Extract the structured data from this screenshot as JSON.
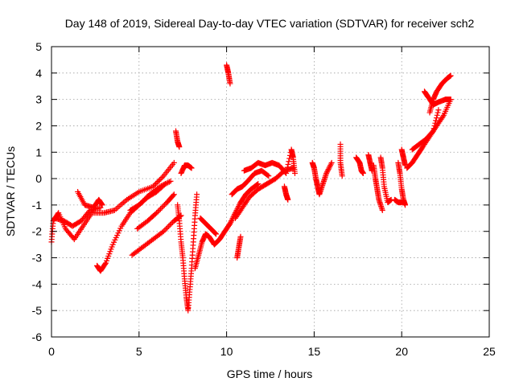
{
  "chart_data": {
    "type": "scatter",
    "title": "Day 148 of 2019, Sidereal Day-to-day VTEC variation (SDTVAR) for receiver sch2",
    "xlabel": "GPS time / hours",
    "ylabel": "SDTVAR / TECUs",
    "xlim": [
      0,
      25
    ],
    "ylim": [
      -6,
      5
    ],
    "xticks": [
      0,
      5,
      10,
      15,
      20,
      25
    ],
    "yticks": [
      -6,
      -5,
      -4,
      -3,
      -2,
      -1,
      0,
      1,
      2,
      3,
      4,
      5
    ],
    "grid": true,
    "marker": "+",
    "color": "#ff0000",
    "series": [
      {
        "tracks": [
          [
            [
              0.0,
              -2.4
            ],
            [
              0.1,
              -1.6
            ],
            [
              0.4,
              -1.3
            ],
            [
              0.8,
              -1.9
            ],
            [
              1.3,
              -2.3
            ],
            [
              1.8,
              -1.8
            ],
            [
              2.3,
              -1.3
            ],
            [
              3.0,
              -1.3
            ],
            [
              3.6,
              -1.2
            ],
            [
              4.3,
              -0.8
            ],
            [
              5.0,
              -0.5
            ],
            [
              5.8,
              -0.3
            ],
            [
              6.4,
              0.1
            ],
            [
              7.0,
              0.6
            ]
          ],
          [
            [
              0.2,
              -1.5
            ],
            [
              0.7,
              -1.6
            ],
            [
              1.2,
              -1.8
            ],
            [
              1.7,
              -1.6
            ],
            [
              2.2,
              -1.2
            ],
            [
              2.8,
              -1.1
            ]
          ],
          [
            [
              1.5,
              -0.5
            ],
            [
              1.9,
              -1.0
            ],
            [
              2.4,
              -1.1
            ],
            [
              2.7,
              -0.8
            ],
            [
              2.9,
              -1.0
            ]
          ],
          [
            [
              2.6,
              -3.3
            ],
            [
              2.8,
              -3.5
            ],
            [
              3.1,
              -3.2
            ],
            [
              3.5,
              -2.5
            ],
            [
              4.0,
              -1.8
            ],
            [
              4.5,
              -1.3
            ],
            [
              5.0,
              -1.0
            ],
            [
              5.5,
              -0.7
            ],
            [
              6.0,
              -0.5
            ],
            [
              6.5,
              -0.2
            ]
          ],
          [
            [
              4.5,
              -1.2
            ],
            [
              5.0,
              -1.0
            ],
            [
              5.6,
              -0.6
            ],
            [
              6.2,
              -0.3
            ],
            [
              6.8,
              -0.1
            ]
          ],
          [
            [
              4.6,
              -2.9
            ],
            [
              5.2,
              -2.6
            ],
            [
              5.8,
              -2.3
            ],
            [
              6.4,
              -2.0
            ],
            [
              7.0,
              -1.6
            ],
            [
              7.4,
              -1.4
            ]
          ],
          [
            [
              4.9,
              -1.9
            ],
            [
              5.5,
              -1.6
            ],
            [
              6.0,
              -1.3
            ],
            [
              6.6,
              -0.9
            ],
            [
              7.0,
              -0.6
            ]
          ],
          [
            [
              7.1,
              1.8
            ],
            [
              7.2,
              1.4
            ],
            [
              7.3,
              1.2
            ]
          ],
          [
            [
              7.2,
              -1.0
            ],
            [
              7.3,
              -1.6
            ],
            [
              7.4,
              -2.4
            ],
            [
              7.5,
              -3.0
            ],
            [
              7.6,
              -3.8
            ],
            [
              7.7,
              -4.5
            ],
            [
              7.8,
              -5.0
            ],
            [
              7.9,
              -4.2
            ],
            [
              8.0,
              -3.4
            ],
            [
              8.1,
              -2.4
            ],
            [
              8.2,
              -1.4
            ],
            [
              8.3,
              -0.6
            ]
          ],
          [
            [
              7.4,
              0.2
            ],
            [
              7.6,
              0.5
            ],
            [
              7.8,
              0.5
            ],
            [
              8.0,
              0.4
            ]
          ],
          [
            [
              8.2,
              -3.4
            ],
            [
              8.4,
              -2.9
            ],
            [
              8.6,
              -2.4
            ],
            [
              8.8,
              -2.1
            ],
            [
              9.0,
              -2.2
            ],
            [
              9.3,
              -2.5
            ],
            [
              9.6,
              -2.3
            ],
            [
              9.9,
              -2.0
            ],
            [
              10.2,
              -1.7
            ],
            [
              10.5,
              -1.3
            ],
            [
              10.8,
              -0.9
            ],
            [
              11.1,
              -0.6
            ],
            [
              11.4,
              -0.4
            ],
            [
              11.8,
              -0.2
            ]
          ],
          [
            [
              8.5,
              -1.5
            ],
            [
              8.8,
              -1.7
            ],
            [
              9.1,
              -1.9
            ],
            [
              9.4,
              -2.1
            ]
          ],
          [
            [
              10.0,
              4.3
            ],
            [
              10.1,
              4.0
            ],
            [
              10.2,
              3.6
            ]
          ],
          [
            [
              10.3,
              -0.6
            ],
            [
              10.6,
              -0.4
            ],
            [
              10.9,
              -0.3
            ],
            [
              11.2,
              -0.1
            ],
            [
              11.6,
              0.2
            ],
            [
              12.0,
              0.3
            ],
            [
              12.4,
              0.1
            ]
          ],
          [
            [
              10.5,
              -1.5
            ],
            [
              10.9,
              -1.1
            ],
            [
              11.3,
              -0.7
            ],
            [
              11.8,
              -0.4
            ],
            [
              12.3,
              -0.2
            ],
            [
              12.8,
              0.0
            ],
            [
              13.3,
              0.3
            ],
            [
              13.8,
              0.4
            ]
          ],
          [
            [
              10.6,
              -3.0
            ],
            [
              10.7,
              -2.6
            ],
            [
              10.8,
              -2.2
            ]
          ],
          [
            [
              11.0,
              0.3
            ],
            [
              11.4,
              0.4
            ],
            [
              11.8,
              0.6
            ],
            [
              12.2,
              0.5
            ],
            [
              12.6,
              0.6
            ],
            [
              13.0,
              0.5
            ],
            [
              13.4,
              0.2
            ],
            [
              13.7,
              1.1
            ],
            [
              13.8,
              0.8
            ],
            [
              13.9,
              0.2
            ]
          ],
          [
            [
              13.3,
              -0.3
            ],
            [
              13.4,
              -0.6
            ],
            [
              13.5,
              -0.8
            ]
          ],
          [
            [
              14.9,
              0.6
            ],
            [
              15.0,
              0.4
            ],
            [
              15.1,
              0.0
            ],
            [
              15.2,
              -0.3
            ],
            [
              15.3,
              -0.6
            ],
            [
              15.5,
              -0.2
            ],
            [
              15.7,
              0.2
            ],
            [
              16.0,
              0.6
            ]
          ],
          [
            [
              16.5,
              1.3
            ],
            [
              16.5,
              0.6
            ],
            [
              16.6,
              0.1
            ]
          ],
          [
            [
              17.4,
              0.8
            ],
            [
              17.6,
              0.6
            ],
            [
              17.7,
              0.3
            ],
            [
              17.8,
              0.2
            ]
          ],
          [
            [
              18.1,
              0.9
            ],
            [
              18.2,
              0.6
            ],
            [
              18.3,
              0.3
            ]
          ],
          [
            [
              18.4,
              0.5
            ],
            [
              18.5,
              0.0
            ],
            [
              18.6,
              -0.4
            ],
            [
              18.7,
              -0.8
            ],
            [
              18.9,
              -1.2
            ]
          ],
          [
            [
              18.8,
              0.8
            ],
            [
              18.9,
              0.4
            ],
            [
              19.0,
              -0.3
            ],
            [
              19.2,
              -0.9
            ],
            [
              19.4,
              -0.8
            ]
          ],
          [
            [
              19.8,
              0.6
            ],
            [
              19.9,
              0.2
            ],
            [
              20.0,
              -0.4
            ],
            [
              20.1,
              -0.8
            ],
            [
              20.2,
              -1.0
            ]
          ],
          [
            [
              19.6,
              -0.8
            ],
            [
              19.8,
              -0.9
            ],
            [
              20.0,
              -0.9
            ]
          ],
          [
            [
              20.0,
              1.1
            ],
            [
              20.1,
              0.8
            ],
            [
              20.2,
              0.5
            ]
          ],
          [
            [
              20.3,
              0.4
            ],
            [
              20.6,
              0.6
            ],
            [
              20.9,
              0.9
            ],
            [
              21.2,
              1.2
            ],
            [
              21.6,
              1.6
            ],
            [
              22.0,
              2.0
            ],
            [
              22.4,
              2.4
            ],
            [
              22.8,
              3.0
            ]
          ],
          [
            [
              20.6,
              1.1
            ],
            [
              21.0,
              1.3
            ],
            [
              21.4,
              1.5
            ],
            [
              21.8,
              1.8
            ],
            [
              22.1,
              2.6
            ]
          ],
          [
            [
              21.6,
              2.5
            ],
            [
              21.8,
              3.0
            ],
            [
              22.0,
              3.3
            ],
            [
              22.3,
              3.6
            ],
            [
              22.6,
              3.8
            ],
            [
              22.8,
              3.9
            ]
          ],
          [
            [
              21.3,
              3.3
            ],
            [
              21.5,
              3.1
            ],
            [
              21.8,
              2.8
            ],
            [
              22.1,
              2.9
            ],
            [
              22.5,
              3.0
            ],
            [
              22.8,
              3.0
            ]
          ]
        ]
      }
    ]
  }
}
